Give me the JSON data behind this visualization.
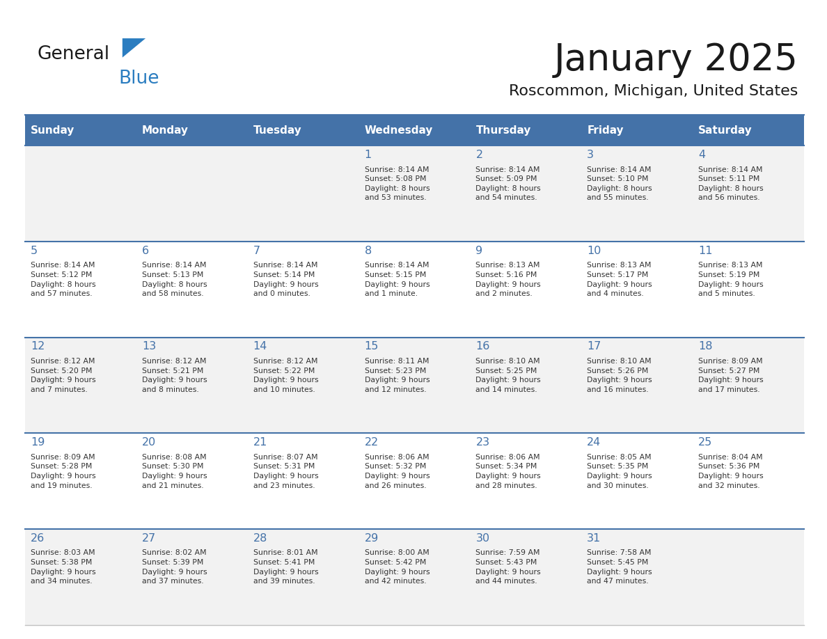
{
  "title": "January 2025",
  "subtitle": "Roscommon, Michigan, United States",
  "header_bg_color": "#4472A8",
  "header_text_color": "#FFFFFF",
  "days_of_week": [
    "Sunday",
    "Monday",
    "Tuesday",
    "Wednesday",
    "Thursday",
    "Friday",
    "Saturday"
  ],
  "weeks": [
    [
      {
        "day": "",
        "info": ""
      },
      {
        "day": "",
        "info": ""
      },
      {
        "day": "",
        "info": ""
      },
      {
        "day": "1",
        "info": "Sunrise: 8:14 AM\nSunset: 5:08 PM\nDaylight: 8 hours\nand 53 minutes."
      },
      {
        "day": "2",
        "info": "Sunrise: 8:14 AM\nSunset: 5:09 PM\nDaylight: 8 hours\nand 54 minutes."
      },
      {
        "day": "3",
        "info": "Sunrise: 8:14 AM\nSunset: 5:10 PM\nDaylight: 8 hours\nand 55 minutes."
      },
      {
        "day": "4",
        "info": "Sunrise: 8:14 AM\nSunset: 5:11 PM\nDaylight: 8 hours\nand 56 minutes."
      }
    ],
    [
      {
        "day": "5",
        "info": "Sunrise: 8:14 AM\nSunset: 5:12 PM\nDaylight: 8 hours\nand 57 minutes."
      },
      {
        "day": "6",
        "info": "Sunrise: 8:14 AM\nSunset: 5:13 PM\nDaylight: 8 hours\nand 58 minutes."
      },
      {
        "day": "7",
        "info": "Sunrise: 8:14 AM\nSunset: 5:14 PM\nDaylight: 9 hours\nand 0 minutes."
      },
      {
        "day": "8",
        "info": "Sunrise: 8:14 AM\nSunset: 5:15 PM\nDaylight: 9 hours\nand 1 minute."
      },
      {
        "day": "9",
        "info": "Sunrise: 8:13 AM\nSunset: 5:16 PM\nDaylight: 9 hours\nand 2 minutes."
      },
      {
        "day": "10",
        "info": "Sunrise: 8:13 AM\nSunset: 5:17 PM\nDaylight: 9 hours\nand 4 minutes."
      },
      {
        "day": "11",
        "info": "Sunrise: 8:13 AM\nSunset: 5:19 PM\nDaylight: 9 hours\nand 5 minutes."
      }
    ],
    [
      {
        "day": "12",
        "info": "Sunrise: 8:12 AM\nSunset: 5:20 PM\nDaylight: 9 hours\nand 7 minutes."
      },
      {
        "day": "13",
        "info": "Sunrise: 8:12 AM\nSunset: 5:21 PM\nDaylight: 9 hours\nand 8 minutes."
      },
      {
        "day": "14",
        "info": "Sunrise: 8:12 AM\nSunset: 5:22 PM\nDaylight: 9 hours\nand 10 minutes."
      },
      {
        "day": "15",
        "info": "Sunrise: 8:11 AM\nSunset: 5:23 PM\nDaylight: 9 hours\nand 12 minutes."
      },
      {
        "day": "16",
        "info": "Sunrise: 8:10 AM\nSunset: 5:25 PM\nDaylight: 9 hours\nand 14 minutes."
      },
      {
        "day": "17",
        "info": "Sunrise: 8:10 AM\nSunset: 5:26 PM\nDaylight: 9 hours\nand 16 minutes."
      },
      {
        "day": "18",
        "info": "Sunrise: 8:09 AM\nSunset: 5:27 PM\nDaylight: 9 hours\nand 17 minutes."
      }
    ],
    [
      {
        "day": "19",
        "info": "Sunrise: 8:09 AM\nSunset: 5:28 PM\nDaylight: 9 hours\nand 19 minutes."
      },
      {
        "day": "20",
        "info": "Sunrise: 8:08 AM\nSunset: 5:30 PM\nDaylight: 9 hours\nand 21 minutes."
      },
      {
        "day": "21",
        "info": "Sunrise: 8:07 AM\nSunset: 5:31 PM\nDaylight: 9 hours\nand 23 minutes."
      },
      {
        "day": "22",
        "info": "Sunrise: 8:06 AM\nSunset: 5:32 PM\nDaylight: 9 hours\nand 26 minutes."
      },
      {
        "day": "23",
        "info": "Sunrise: 8:06 AM\nSunset: 5:34 PM\nDaylight: 9 hours\nand 28 minutes."
      },
      {
        "day": "24",
        "info": "Sunrise: 8:05 AM\nSunset: 5:35 PM\nDaylight: 9 hours\nand 30 minutes."
      },
      {
        "day": "25",
        "info": "Sunrise: 8:04 AM\nSunset: 5:36 PM\nDaylight: 9 hours\nand 32 minutes."
      }
    ],
    [
      {
        "day": "26",
        "info": "Sunrise: 8:03 AM\nSunset: 5:38 PM\nDaylight: 9 hours\nand 34 minutes."
      },
      {
        "day": "27",
        "info": "Sunrise: 8:02 AM\nSunset: 5:39 PM\nDaylight: 9 hours\nand 37 minutes."
      },
      {
        "day": "28",
        "info": "Sunrise: 8:01 AM\nSunset: 5:41 PM\nDaylight: 9 hours\nand 39 minutes."
      },
      {
        "day": "29",
        "info": "Sunrise: 8:00 AM\nSunset: 5:42 PM\nDaylight: 9 hours\nand 42 minutes."
      },
      {
        "day": "30",
        "info": "Sunrise: 7:59 AM\nSunset: 5:43 PM\nDaylight: 9 hours\nand 44 minutes."
      },
      {
        "day": "31",
        "info": "Sunrise: 7:58 AM\nSunset: 5:45 PM\nDaylight: 9 hours\nand 47 minutes."
      },
      {
        "day": "",
        "info": ""
      }
    ]
  ],
  "row_colors": [
    "#F2F2F2",
    "#FFFFFF"
  ],
  "cell_border_color": "#C0C0C0",
  "week_top_border_color": "#4472A8",
  "day_number_color": "#4472A8",
  "info_text_color": "#333333",
  "logo_general_color": "#1a1a1a",
  "logo_blue_color": "#2B7DC0",
  "logo_triangle_color": "#2B7DC0",
  "background_color": "#FFFFFF",
  "title_color": "#1a1a1a",
  "subtitle_color": "#1a1a1a"
}
